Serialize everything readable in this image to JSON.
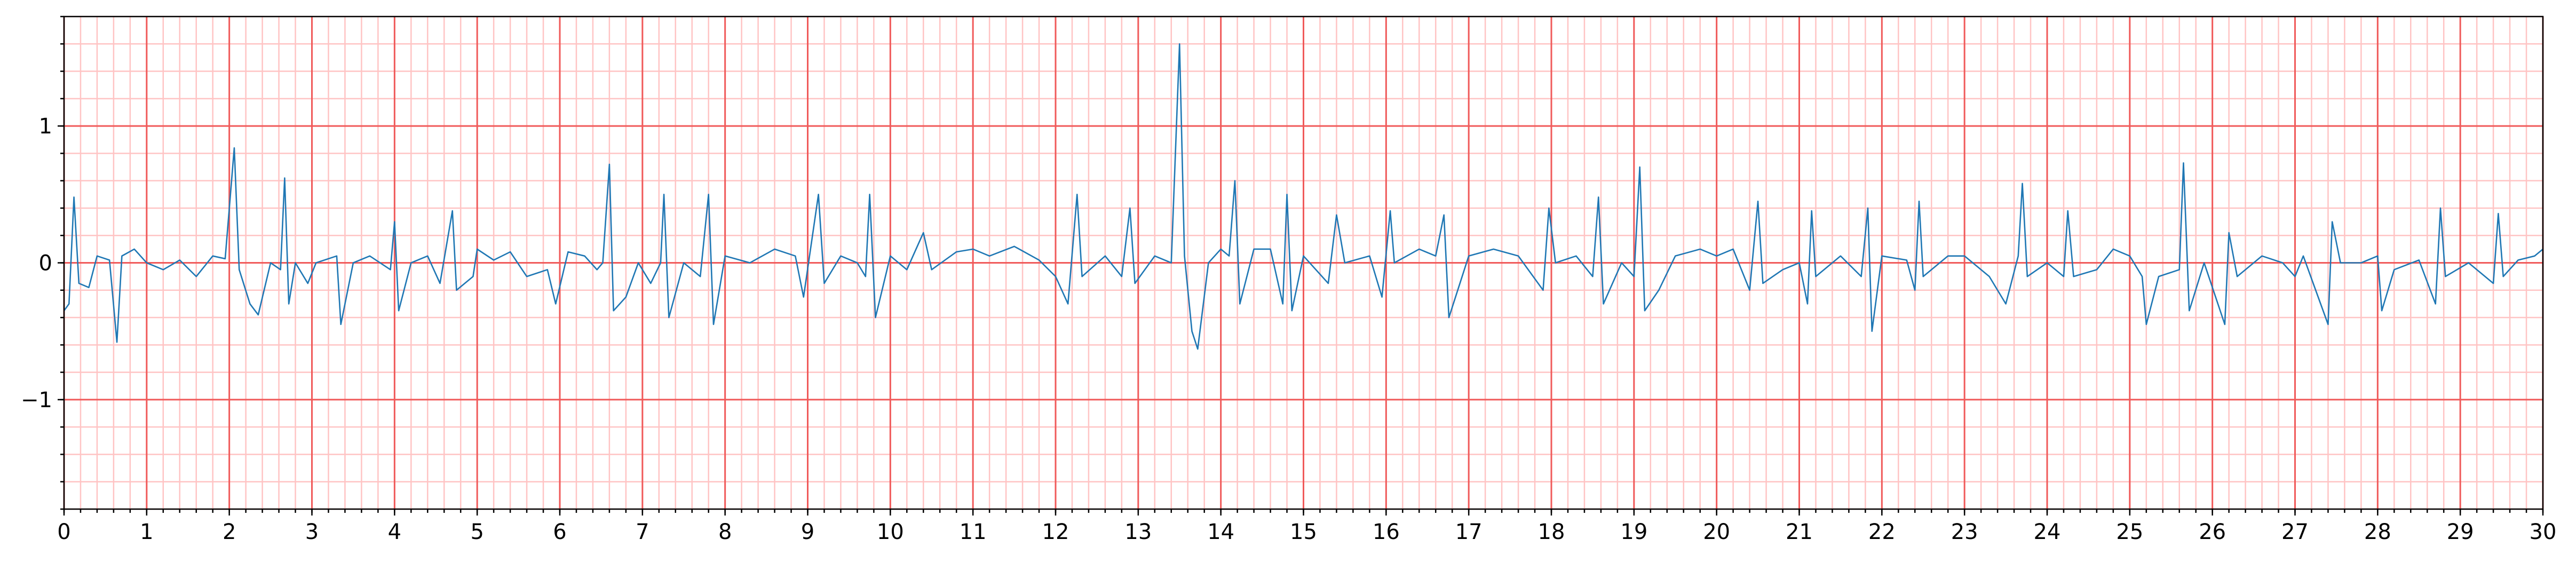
{
  "chart_data": {
    "type": "line",
    "color": "#1f77b4",
    "x": [
      0,
      0.06,
      0.12,
      0.18,
      0.3,
      0.4,
      0.55,
      0.64,
      0.7,
      0.85,
      1,
      1.2,
      1.4,
      1.6,
      1.8,
      1.95,
      2.06,
      2.12,
      2.25,
      2.35,
      2.5,
      2.62,
      2.67,
      2.72,
      2.8,
      2.95,
      3.05,
      3.3,
      3.35,
      3.5,
      3.7,
      3.95,
      4,
      4.05,
      4.2,
      4.4,
      4.55,
      4.7,
      4.75,
      4.95,
      5,
      5.2,
      5.4,
      5.6,
      5.85,
      5.95,
      6.1,
      6.3,
      6.45,
      6.52,
      6.6,
      6.65,
      6.8,
      6.95,
      7.1,
      7.22,
      7.26,
      7.32,
      7.5,
      7.7,
      7.8,
      7.86,
      8,
      8.3,
      8.6,
      8.85,
      8.95,
      9.13,
      9.2,
      9.4,
      9.6,
      9.7,
      9.75,
      9.82,
      10,
      10.2,
      10.4,
      10.5,
      10.8,
      11,
      11.2,
      11.5,
      11.8,
      12,
      12.15,
      12.26,
      12.32,
      12.6,
      12.8,
      12.9,
      12.96,
      13.2,
      13.4,
      13.5,
      13.56,
      13.65,
      13.72,
      13.85,
      14,
      14.1,
      14.17,
      14.23,
      14.4,
      14.6,
      14.75,
      14.8,
      14.86,
      15,
      15.3,
      15.4,
      15.5,
      15.8,
      15.95,
      16.05,
      16.1,
      16.4,
      16.6,
      16.7,
      16.76,
      17,
      17.3,
      17.6,
      17.9,
      17.97,
      18.05,
      18.3,
      18.5,
      18.57,
      18.63,
      18.85,
      19,
      19.07,
      19.13,
      19.3,
      19.5,
      19.8,
      20,
      20.2,
      20.4,
      20.5,
      20.56,
      20.8,
      21,
      21.1,
      21.15,
      21.2,
      21.5,
      21.75,
      21.83,
      21.88,
      22,
      22.3,
      22.4,
      22.45,
      22.5,
      22.8,
      23,
      23.3,
      23.5,
      23.65,
      23.7,
      23.76,
      24,
      24.2,
      24.25,
      24.32,
      24.6,
      24.8,
      25,
      25.15,
      25.2,
      25.35,
      25.6,
      25.65,
      25.72,
      25.9,
      26.15,
      26.2,
      26.3,
      26.6,
      26.85,
      27,
      27.1,
      27.4,
      27.45,
      27.55,
      27.8,
      28,
      28.05,
      28.2,
      28.5,
      28.7,
      28.76,
      28.82,
      29.1,
      29.4,
      29.46,
      29.52,
      29.7,
      29.9,
      30
    ],
    "values": [
      -0.35,
      -0.3,
      0.48,
      -0.15,
      -0.18,
      0.05,
      0.02,
      -0.58,
      0.05,
      0.1,
      0,
      -0.05,
      0.02,
      -0.1,
      0.05,
      0.03,
      0.84,
      -0.05,
      -0.3,
      -0.38,
      0,
      -0.05,
      0.62,
      -0.3,
      0,
      -0.15,
      0,
      0.05,
      -0.45,
      0,
      0.05,
      -0.05,
      0.3,
      -0.35,
      0,
      0.05,
      -0.15,
      0.38,
      -0.2,
      -0.1,
      0.1,
      0.02,
      0.08,
      -0.1,
      -0.05,
      -0.3,
      0.08,
      0.05,
      -0.05,
      0,
      0.72,
      -0.35,
      -0.25,
      0,
      -0.15,
      0,
      0.5,
      -0.4,
      0,
      -0.1,
      0.5,
      -0.45,
      0.05,
      0,
      0.1,
      0.05,
      -0.25,
      0.5,
      -0.15,
      0.05,
      0,
      -0.1,
      0.5,
      -0.4,
      0.05,
      -0.05,
      0.22,
      -0.05,
      0.08,
      0.1,
      0.05,
      0.12,
      0.02,
      -0.1,
      -0.3,
      0.5,
      -0.1,
      0.05,
      -0.1,
      0.4,
      -0.15,
      0.05,
      0,
      1.6,
      0.05,
      -0.5,
      -0.63,
      0,
      0.1,
      0.05,
      0.6,
      -0.3,
      0.1,
      0.1,
      -0.3,
      0.5,
      -0.35,
      0.05,
      -0.15,
      0.35,
      0,
      0.05,
      -0.25,
      0.38,
      0,
      0.1,
      0.05,
      0.35,
      -0.4,
      0.05,
      0.1,
      0.05,
      -0.2,
      0.4,
      0,
      0.05,
      -0.1,
      0.48,
      -0.3,
      0,
      -0.1,
      0.7,
      -0.35,
      -0.2,
      0.05,
      0.1,
      0.05,
      0.1,
      -0.2,
      0.45,
      -0.15,
      -0.05,
      0,
      -0.3,
      0.38,
      -0.1,
      0.05,
      -0.1,
      0.4,
      -0.5,
      0.05,
      0.02,
      -0.2,
      0.45,
      -0.1,
      0.05,
      0.05,
      -0.1,
      -0.3,
      0.05,
      0.58,
      -0.1,
      0,
      -0.1,
      0.38,
      -0.1,
      -0.05,
      0.1,
      0.05,
      -0.1,
      -0.45,
      -0.1,
      -0.05,
      0.73,
      -0.35,
      0,
      -0.45,
      0.22,
      -0.1,
      0.05,
      0,
      -0.1,
      0.05,
      -0.45,
      0.3,
      0,
      0,
      0.05,
      -0.35,
      -0.05,
      0.02,
      -0.3,
      0.4,
      -0.1,
      0,
      -0.15,
      0.36,
      -0.1,
      0.02,
      0.05,
      0.1
    ],
    "xlim": [
      0,
      30
    ],
    "ylim": [
      -1.8,
      1.8
    ],
    "xticks": [
      0,
      1,
      2,
      3,
      4,
      5,
      6,
      7,
      8,
      9,
      10,
      11,
      12,
      13,
      14,
      15,
      16,
      17,
      18,
      19,
      20,
      21,
      22,
      23,
      24,
      25,
      26,
      27,
      28,
      29,
      30
    ],
    "yticks": [
      {
        "value": -1,
        "label": "−1"
      },
      0,
      1
    ],
    "grid": true,
    "minor_step": 0.2,
    "grid_color": "#f05a5a",
    "minor_grid_color": "#ffc4c4"
  }
}
